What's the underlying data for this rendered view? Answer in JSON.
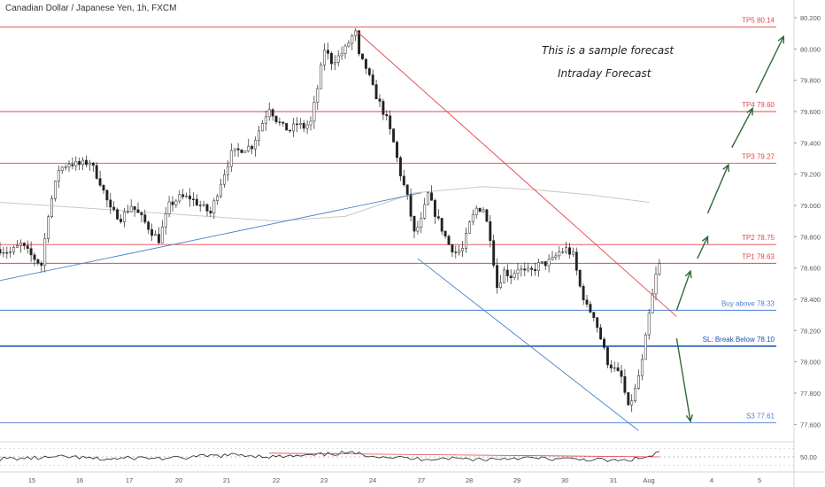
{
  "header": {
    "symbol_title": "Canadian Dollar / Japanese Yen, 1h, FXCM"
  },
  "annotations": {
    "line1": "This is a sample forecast",
    "line2": "Intraday Forecast"
  },
  "colors": {
    "up": "#333333",
    "down": "#333333",
    "target_line": "#e2454a",
    "entry_line": "#4a7fcf",
    "stop_line": "#1c4fb0",
    "trend_red": "#e2454a",
    "trend_blue": "#4a7fcf",
    "arrow_green": "#2e6b37",
    "ma_line": "#c8c8c8",
    "rsi_line": "#222222"
  },
  "chart_data": {
    "type": "candlestick",
    "symbol": "CADJPY",
    "timeframe": "1h",
    "ylim": [
      77.5,
      80.2
    ],
    "y_ticks": [
      "80.200",
      "80.000",
      "79.800",
      "79.600",
      "79.400",
      "79.200",
      "79.000",
      "78.800",
      "78.600",
      "78.400",
      "78.200",
      "78.000",
      "77.800",
      "77.600"
    ],
    "x_ticks": [
      "15",
      "16",
      "17",
      "20",
      "21",
      "22",
      "23",
      "24",
      "27",
      "28",
      "29",
      "30",
      "31",
      "Aug",
      "4",
      "5"
    ],
    "levels": [
      {
        "label": "TP5 80.14",
        "value": 80.14,
        "kind": "target"
      },
      {
        "label": "TP4 79.60",
        "value": 79.6,
        "kind": "target"
      },
      {
        "label": "TP3 79.27",
        "value": 79.27,
        "kind": "target"
      },
      {
        "label": "TP2 78.75",
        "value": 78.75,
        "kind": "target"
      },
      {
        "label": "TP1 78.63",
        "value": 78.63,
        "kind": "target"
      },
      {
        "label": "Buy above 78.33",
        "value": 78.33,
        "kind": "entry"
      },
      {
        "label": "SL: Break Below 78.10",
        "value": 78.1,
        "kind": "stop"
      },
      {
        "label": "S3 77.61",
        "value": 77.61,
        "kind": "entry"
      }
    ],
    "close_path": [
      [
        0,
        78.72
      ],
      [
        3,
        78.7
      ],
      [
        6,
        78.75
      ],
      [
        9,
        78.68
      ],
      [
        12,
        78.62
      ],
      [
        14,
        78.95
      ],
      [
        17,
        79.23
      ],
      [
        20,
        79.27
      ],
      [
        23,
        79.26
      ],
      [
        26,
        79.28
      ],
      [
        29,
        79.15
      ],
      [
        32,
        78.97
      ],
      [
        35,
        78.92
      ],
      [
        38,
        79.0
      ],
      [
        41,
        78.92
      ],
      [
        44,
        78.83
      ],
      [
        46,
        78.78
      ],
      [
        49,
        79.0
      ],
      [
        52,
        79.05
      ],
      [
        55,
        79.05
      ],
      [
        58,
        79.0
      ],
      [
        61,
        78.95
      ],
      [
        64,
        79.15
      ],
      [
        67,
        79.33
      ],
      [
        70,
        79.36
      ],
      [
        73,
        79.38
      ],
      [
        76,
        79.53
      ],
      [
        78,
        79.63
      ],
      [
        80,
        79.55
      ],
      [
        82,
        79.5
      ],
      [
        84,
        79.48
      ],
      [
        86,
        79.52
      ],
      [
        88,
        79.5
      ],
      [
        90,
        79.53
      ],
      [
        92,
        79.75
      ],
      [
        94,
        80.0
      ],
      [
        96,
        79.92
      ],
      [
        98,
        79.95
      ],
      [
        100,
        80.0
      ],
      [
        102,
        80.08
      ],
      [
        103,
        80.1
      ],
      [
        104,
        79.95
      ],
      [
        106,
        79.88
      ],
      [
        108,
        79.75
      ],
      [
        110,
        79.65
      ],
      [
        112,
        79.55
      ],
      [
        114,
        79.4
      ],
      [
        116,
        79.2
      ],
      [
        118,
        79.05
      ],
      [
        120,
        78.82
      ],
      [
        122,
        78.9
      ],
      [
        124,
        79.07
      ],
      [
        126,
        78.95
      ],
      [
        128,
        78.85
      ],
      [
        130,
        78.75
      ],
      [
        132,
        78.7
      ],
      [
        134,
        78.72
      ],
      [
        136,
        78.88
      ],
      [
        138,
        78.98
      ],
      [
        140,
        78.98
      ],
      [
        142,
        78.8
      ],
      [
        144,
        78.48
      ],
      [
        146,
        78.58
      ],
      [
        148,
        78.55
      ],
      [
        150,
        78.6
      ],
      [
        152,
        78.57
      ],
      [
        154,
        78.58
      ],
      [
        156,
        78.62
      ],
      [
        158,
        78.63
      ],
      [
        160,
        78.65
      ],
      [
        162,
        78.7
      ],
      [
        164,
        78.72
      ],
      [
        166,
        78.68
      ],
      [
        168,
        78.48
      ],
      [
        170,
        78.35
      ],
      [
        172,
        78.3
      ],
      [
        174,
        78.15
      ],
      [
        176,
        78.0
      ],
      [
        178,
        77.95
      ],
      [
        180,
        77.9
      ],
      [
        182,
        77.7
      ],
      [
        184,
        77.82
      ],
      [
        186,
        78.0
      ],
      [
        188,
        78.3
      ],
      [
        190,
        78.55
      ],
      [
        191,
        78.62
      ]
    ],
    "moving_average": [
      [
        0,
        79.02
      ],
      [
        40,
        78.96
      ],
      [
        80,
        78.9
      ],
      [
        100,
        78.93
      ],
      [
        120,
        79.08
      ],
      [
        140,
        79.12
      ],
      [
        155,
        79.1
      ],
      [
        170,
        79.07
      ],
      [
        188,
        79.02
      ]
    ],
    "trendlines": [
      {
        "color": "red",
        "points": [
          [
            103,
            80.12
          ],
          [
            196,
            78.29
          ]
        ]
      },
      {
        "color": "blue",
        "points": [
          [
            0,
            78.52
          ],
          [
            122,
            79.08
          ]
        ]
      },
      {
        "color": "blue",
        "points": [
          [
            121,
            78.66
          ],
          [
            185,
            77.56
          ]
        ]
      }
    ],
    "projection_arrows": [
      {
        "from": [
          196,
          78.33
        ],
        "to": [
          200,
          78.58
        ]
      },
      {
        "from": [
          202,
          78.66
        ],
        "to": [
          205,
          78.8
        ]
      },
      {
        "from": [
          205,
          78.95
        ],
        "to": [
          211,
          79.26
        ]
      },
      {
        "from": [
          212,
          79.37
        ],
        "to": [
          218,
          79.62
        ]
      },
      {
        "from": [
          219,
          79.72
        ],
        "to": [
          227,
          80.08
        ]
      },
      {
        "from": [
          196,
          78.15
        ],
        "to": [
          200,
          77.62
        ]
      }
    ],
    "rsi": {
      "label": "50.00",
      "path": [
        [
          0,
          45
        ],
        [
          10,
          47
        ],
        [
          20,
          50
        ],
        [
          30,
          44
        ],
        [
          40,
          48
        ],
        [
          50,
          46
        ],
        [
          60,
          52
        ],
        [
          70,
          55
        ],
        [
          80,
          50
        ],
        [
          90,
          53
        ],
        [
          100,
          60
        ],
        [
          110,
          52
        ],
        [
          120,
          45
        ],
        [
          130,
          47
        ],
        [
          140,
          44
        ],
        [
          150,
          48
        ],
        [
          160,
          45
        ],
        [
          170,
          44
        ],
        [
          180,
          40
        ],
        [
          188,
          50
        ],
        [
          191,
          62
        ]
      ]
    }
  }
}
